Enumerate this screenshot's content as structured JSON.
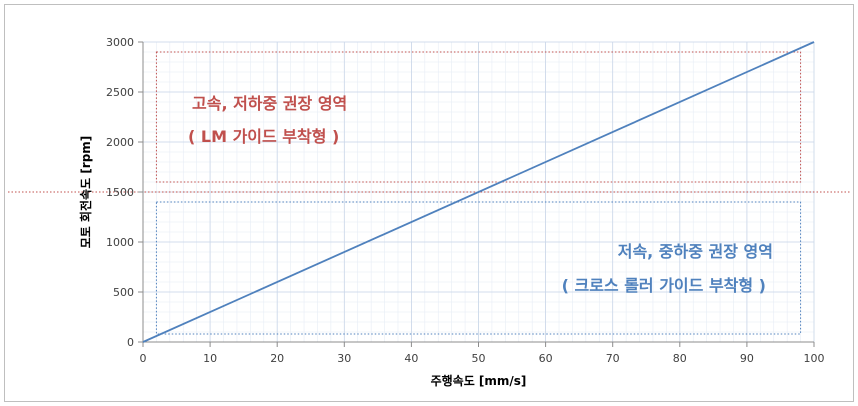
{
  "chart_data": {
    "type": "line",
    "xlabel": "주행속도 [mm/s]",
    "ylabel": "모토 회전속도 [rpm]",
    "xlim": [
      0,
      100
    ],
    "ylim": [
      0,
      3000
    ],
    "x_ticks": [
      "0",
      "10",
      "20",
      "30",
      "40",
      "50",
      "60",
      "70",
      "80",
      "90",
      "100"
    ],
    "y_ticks": [
      "0",
      "500",
      "1000",
      "1500",
      "2000",
      "2500",
      "3000"
    ],
    "grid": true,
    "legend": "none",
    "series": [
      {
        "x": [
          0,
          100
        ],
        "y": [
          0,
          3000
        ],
        "color": "#4f81bd"
      }
    ],
    "reference_lines": [
      {
        "axis": "y",
        "value": 1500,
        "color": "#c0504d",
        "style": "dotted"
      }
    ],
    "regions": [
      {
        "x_range": [
          2,
          98
        ],
        "y_range": [
          1600,
          2900
        ],
        "color": "#c0504d",
        "label_line1": "고속, 저하중 권장 영역",
        "label_line2": "( LM 가이드 부착형 )"
      },
      {
        "x_range": [
          2,
          98
        ],
        "y_range": [
          80,
          1400
        ],
        "color": "#4f81bd",
        "label_line1": "저속, 중하중 권장 영역",
        "label_line2": "( 크로스 롤러 가이드 부착형 )"
      }
    ]
  }
}
